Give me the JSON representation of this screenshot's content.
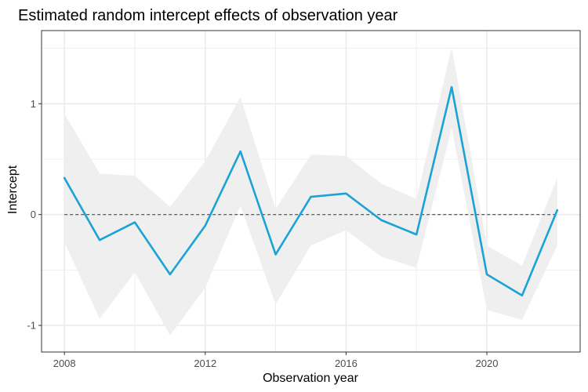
{
  "chart_data": {
    "type": "line",
    "title": "Estimated random intercept effects of observation year",
    "xlabel": "Observation year",
    "ylabel": "Intercept",
    "x": [
      2008,
      2009,
      2010,
      2011,
      2012,
      2013,
      2014,
      2015,
      2016,
      2017,
      2018,
      2019,
      2020,
      2021,
      2022
    ],
    "series": [
      {
        "values": [
          0.33,
          -0.23,
          -0.07,
          -0.54,
          -0.1,
          0.57,
          -0.36,
          0.16,
          0.19,
          -0.05,
          -0.18,
          1.15,
          -0.54,
          -0.73,
          0.04
        ],
        "lower": [
          -0.25,
          -0.94,
          -0.52,
          -1.09,
          -0.66,
          0.08,
          -0.81,
          -0.28,
          -0.14,
          -0.38,
          -0.48,
          0.78,
          -0.86,
          -0.95,
          -0.28
        ],
        "upper": [
          0.91,
          0.37,
          0.35,
          0.07,
          0.48,
          1.06,
          0.05,
          0.54,
          0.53,
          0.28,
          0.14,
          1.51,
          -0.28,
          -0.46,
          0.33
        ]
      }
    ],
    "reference_line": 0,
    "xlim": [
      2007.35,
      2022.65
    ],
    "ylim": [
      -1.24,
      1.66
    ],
    "xticks": [
      2008,
      2012,
      2016,
      2020
    ],
    "yticks": [
      -1,
      0,
      1
    ],
    "ytick_labels": [
      "-1",
      "0",
      "1"
    ],
    "grid": true,
    "legend": false,
    "colors": {
      "line": "#1ba3d6",
      "ribbon": "#efefef",
      "reference": "#333333",
      "grid": "#ebebeb",
      "panel_border": "#333333"
    }
  }
}
